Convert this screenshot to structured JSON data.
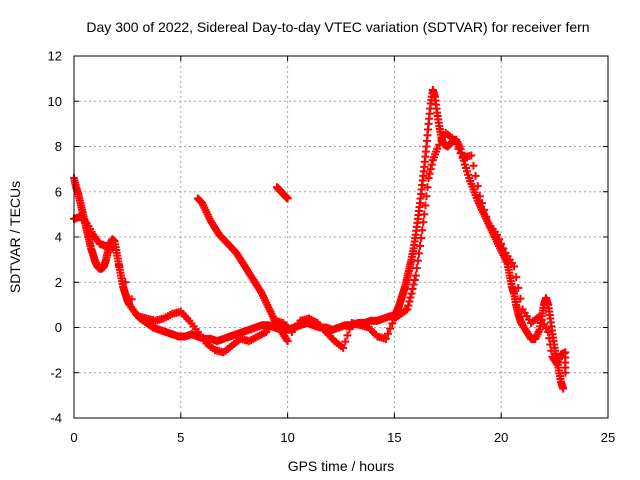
{
  "chart_data": {
    "type": "scatter",
    "title": "Day 300 of 2022, Sidereal Day-to-day VTEC variation (SDTVAR) for receiver fern",
    "xlabel": "GPS time / hours",
    "ylabel": "SDTVAR / TECUs",
    "xlim": [
      0,
      25
    ],
    "ylim": [
      -4,
      12
    ],
    "x_ticks": [
      "0",
      "5",
      "10",
      "15",
      "20",
      "25"
    ],
    "y_ticks": [
      "-4",
      "-2",
      "0",
      "2",
      "4",
      "6",
      "8",
      "10",
      "12"
    ],
    "grid": true,
    "marker": "+",
    "color": "#ff0000",
    "series": [
      {
        "name": "main-trace",
        "points": [
          [
            0.0,
            6.6
          ],
          [
            0.1,
            6.2
          ],
          [
            0.2,
            5.9
          ],
          [
            0.3,
            5.5
          ],
          [
            0.4,
            5.1
          ],
          [
            0.5,
            4.7
          ],
          [
            0.6,
            4.3
          ],
          [
            0.7,
            3.9
          ],
          [
            0.8,
            3.5
          ],
          [
            0.9,
            3.2
          ],
          [
            1.0,
            2.9
          ],
          [
            1.1,
            2.7
          ],
          [
            1.2,
            2.6
          ],
          [
            1.3,
            2.6
          ],
          [
            1.4,
            2.7
          ],
          [
            1.5,
            3.0
          ],
          [
            1.6,
            3.4
          ],
          [
            1.7,
            3.7
          ],
          [
            1.8,
            3.9
          ],
          [
            1.9,
            3.8
          ],
          [
            2.0,
            3.3
          ],
          [
            2.1,
            2.8
          ],
          [
            2.2,
            2.3
          ],
          [
            2.3,
            1.8
          ],
          [
            2.4,
            1.5
          ],
          [
            2.5,
            1.2
          ],
          [
            2.6,
            1.0
          ],
          [
            2.9,
            0.6
          ],
          [
            3.1,
            0.4
          ],
          [
            3.4,
            0.2
          ],
          [
            3.7,
            0.0
          ],
          [
            4.0,
            -0.1
          ],
          [
            4.3,
            -0.2
          ],
          [
            4.6,
            -0.3
          ],
          [
            4.9,
            -0.4
          ],
          [
            5.2,
            -0.4
          ],
          [
            5.5,
            -0.3
          ],
          [
            5.8,
            -0.4
          ],
          [
            6.1,
            -0.5
          ],
          [
            6.4,
            -0.5
          ],
          [
            6.7,
            -0.6
          ],
          [
            7.0,
            -0.5
          ],
          [
            7.3,
            -0.4
          ],
          [
            7.6,
            -0.3
          ],
          [
            7.9,
            -0.2
          ],
          [
            8.2,
            -0.1
          ],
          [
            8.5,
            0.0
          ],
          [
            8.8,
            0.1
          ],
          [
            9.1,
            0.1
          ],
          [
            9.4,
            0.0
          ],
          [
            9.7,
            -0.1
          ],
          [
            10.0,
            -0.1
          ],
          [
            10.3,
            0.0
          ],
          [
            10.6,
            0.1
          ],
          [
            10.9,
            0.2
          ],
          [
            11.2,
            0.1
          ],
          [
            11.5,
            0.0
          ],
          [
            11.8,
            0.0
          ],
          [
            12.1,
            -0.1
          ],
          [
            12.4,
            0.0
          ],
          [
            12.7,
            0.1
          ],
          [
            13.0,
            0.1
          ],
          [
            13.3,
            0.2
          ],
          [
            13.6,
            0.2
          ],
          [
            13.9,
            0.3
          ],
          [
            14.2,
            0.3
          ],
          [
            14.5,
            0.4
          ],
          [
            14.8,
            0.5
          ],
          [
            15.0,
            0.5
          ],
          [
            15.1,
            0.7
          ],
          [
            15.2,
            0.9
          ],
          [
            15.3,
            1.2
          ],
          [
            15.4,
            1.5
          ],
          [
            15.5,
            1.8
          ],
          [
            15.6,
            2.2
          ],
          [
            15.7,
            2.6
          ],
          [
            15.8,
            3.0
          ],
          [
            15.9,
            3.5
          ],
          [
            16.0,
            4.1
          ],
          [
            16.1,
            4.8
          ],
          [
            16.2,
            5.5
          ],
          [
            16.3,
            6.3
          ],
          [
            16.4,
            7.1
          ],
          [
            16.5,
            8.0
          ],
          [
            16.6,
            9.0
          ],
          [
            16.7,
            9.9
          ],
          [
            16.8,
            10.5
          ],
          [
            16.9,
            10.2
          ],
          [
            17.0,
            9.5
          ],
          [
            17.1,
            8.9
          ],
          [
            17.2,
            8.4
          ],
          [
            17.3,
            8.1
          ],
          [
            17.5,
            8.0
          ],
          [
            17.7,
            8.2
          ],
          [
            17.9,
            8.3
          ],
          [
            18.1,
            7.9
          ],
          [
            18.3,
            7.2
          ],
          [
            18.5,
            6.6
          ],
          [
            18.7,
            6.1
          ],
          [
            18.9,
            5.6
          ],
          [
            19.1,
            5.2
          ],
          [
            19.3,
            4.8
          ],
          [
            19.5,
            4.4
          ],
          [
            19.7,
            4.0
          ],
          [
            19.9,
            3.6
          ],
          [
            20.1,
            3.2
          ],
          [
            20.3,
            2.8
          ],
          [
            20.4,
            2.3
          ],
          [
            20.5,
            1.8
          ],
          [
            20.6,
            1.5
          ],
          [
            20.7,
            1.0
          ],
          [
            20.8,
            0.6
          ],
          [
            20.9,
            0.3
          ],
          [
            21.0,
            0.1
          ],
          [
            21.2,
            -0.2
          ],
          [
            21.4,
            -0.5
          ],
          [
            21.6,
            -0.5
          ],
          [
            21.8,
            -0.1
          ],
          [
            21.9,
            0.5
          ],
          [
            22.0,
            1.0
          ],
          [
            22.1,
            1.3
          ],
          [
            22.2,
            1.0
          ],
          [
            22.3,
            0.4
          ],
          [
            22.4,
            -0.3
          ],
          [
            22.5,
            -0.9
          ],
          [
            22.6,
            -1.4
          ],
          [
            22.7,
            -1.9
          ],
          [
            22.8,
            -2.4
          ],
          [
            22.9,
            -2.7
          ]
        ]
      },
      {
        "name": "secondary-trace",
        "points": [
          [
            0.0,
            4.8
          ],
          [
            0.3,
            4.9
          ],
          [
            0.6,
            4.6
          ],
          [
            0.9,
            4.1
          ],
          [
            1.2,
            3.7
          ],
          [
            1.5,
            3.6
          ],
          [
            1.8,
            3.5
          ],
          [
            3.0,
            0.5
          ],
          [
            3.4,
            0.4
          ],
          [
            3.8,
            0.3
          ],
          [
            4.2,
            0.4
          ],
          [
            4.6,
            0.6
          ],
          [
            5.0,
            0.7
          ],
          [
            5.4,
            0.3
          ],
          [
            5.8,
            -0.2
          ],
          [
            6.2,
            -0.7
          ],
          [
            6.6,
            -1.0
          ],
          [
            7.0,
            -1.1
          ],
          [
            7.4,
            -0.8
          ],
          [
            7.8,
            -0.5
          ],
          [
            8.2,
            -0.6
          ],
          [
            8.6,
            -0.4
          ],
          [
            9.0,
            -0.2
          ],
          [
            9.4,
            0.3
          ],
          [
            9.8,
            0.2
          ],
          [
            10.2,
            -0.2
          ],
          [
            10.6,
            0.3
          ],
          [
            11.0,
            0.4
          ],
          [
            11.4,
            0.2
          ],
          [
            11.8,
            -0.2
          ],
          [
            12.2,
            -0.6
          ],
          [
            12.6,
            -0.9
          ],
          [
            13.0,
            0.2
          ],
          [
            13.4,
            0.1
          ],
          [
            13.8,
            0.0
          ],
          [
            14.2,
            -0.4
          ],
          [
            14.6,
            -0.5
          ],
          [
            15.0,
            0.4
          ],
          [
            15.3,
            0.6
          ],
          [
            15.6,
            0.8
          ],
          [
            15.8,
            1.5
          ],
          [
            16.0,
            2.3
          ],
          [
            16.2,
            3.6
          ],
          [
            16.4,
            5.0
          ],
          [
            16.6,
            6.6
          ],
          [
            16.8,
            7.4
          ],
          [
            17.0,
            7.9
          ],
          [
            17.4,
            8.6
          ],
          [
            17.8,
            8.3
          ],
          [
            18.2,
            7.5
          ],
          [
            18.6,
            7.6
          ],
          [
            19.0,
            5.8
          ],
          [
            19.4,
            4.6
          ],
          [
            19.8,
            4.1
          ],
          [
            20.2,
            3.3
          ],
          [
            20.6,
            2.7
          ],
          [
            21.0,
            0.8
          ],
          [
            21.4,
            0.2
          ],
          [
            21.8,
            0.5
          ],
          [
            22.2,
            -0.2
          ],
          [
            22.4,
            -1.3
          ],
          [
            22.6,
            -1.6
          ],
          [
            22.8,
            -1.2
          ],
          [
            23.0,
            -1.1
          ],
          [
            23.0,
            -2.0
          ]
        ]
      },
      {
        "name": "descending-arc",
        "points": [
          [
            5.8,
            5.7
          ],
          [
            6.0,
            5.5
          ],
          [
            6.2,
            5.1
          ],
          [
            6.4,
            4.7
          ],
          [
            6.6,
            4.4
          ],
          [
            6.8,
            4.1
          ],
          [
            7.0,
            3.9
          ],
          [
            7.2,
            3.7
          ],
          [
            7.4,
            3.5
          ],
          [
            7.6,
            3.3
          ],
          [
            7.8,
            3.0
          ],
          [
            8.0,
            2.7
          ],
          [
            8.2,
            2.4
          ],
          [
            8.4,
            2.1
          ],
          [
            8.6,
            1.8
          ],
          [
            8.8,
            1.5
          ],
          [
            9.0,
            1.1
          ],
          [
            9.2,
            0.7
          ],
          [
            9.4,
            0.3
          ],
          [
            9.6,
            0.0
          ],
          [
            9.8,
            -0.3
          ],
          [
            10.0,
            -0.6
          ]
        ]
      },
      {
        "name": "isolated-segment",
        "points": [
          [
            9.5,
            6.2
          ],
          [
            9.6,
            6.1
          ],
          [
            9.7,
            6.0
          ],
          [
            9.8,
            5.9
          ],
          [
            9.9,
            5.8
          ],
          [
            10.0,
            5.7
          ]
        ]
      }
    ]
  }
}
